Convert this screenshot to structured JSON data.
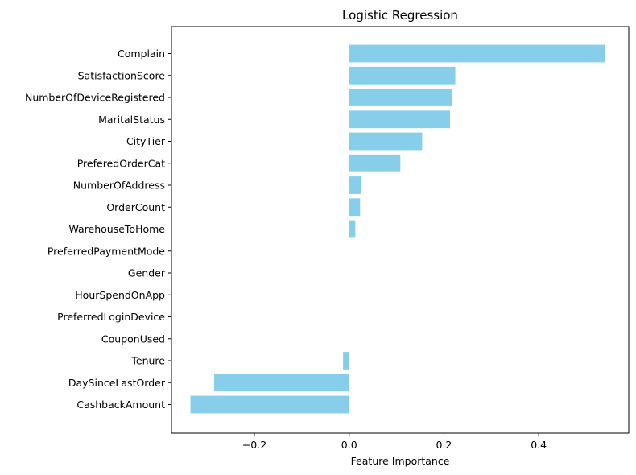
{
  "chart_data": {
    "type": "bar",
    "orientation": "horizontal",
    "title": "Logistic Regression",
    "xlabel": "Feature Importance",
    "ylabel": "",
    "xlim": [
      -0.375,
      0.59
    ],
    "xticks": [
      -0.2,
      0.0,
      0.2,
      0.4
    ],
    "xtick_labels": [
      "−0.2",
      "0.0",
      "0.2",
      "0.4"
    ],
    "grid": false,
    "legend": "none",
    "bar_color": "#87CEEB",
    "categories": [
      "Complain",
      "SatisfactionScore",
      "NumberOfDeviceRegistered",
      "MaritalStatus",
      "CityTier",
      "PreferedOrderCat",
      "NumberOfAddress",
      "OrderCount",
      "WarehouseToHome",
      "PreferredPaymentMode",
      "Gender",
      "HourSpendOnApp",
      "PreferredLoginDevice",
      "CouponUsed",
      "Tenure",
      "DaySinceLastOrder",
      "CashbackAmount"
    ],
    "values": [
      0.54,
      0.224,
      0.218,
      0.213,
      0.154,
      0.108,
      0.025,
      0.023,
      0.013,
      0.0,
      0.0,
      0.0,
      0.0,
      0.0,
      -0.013,
      -0.285,
      -0.335
    ]
  }
}
